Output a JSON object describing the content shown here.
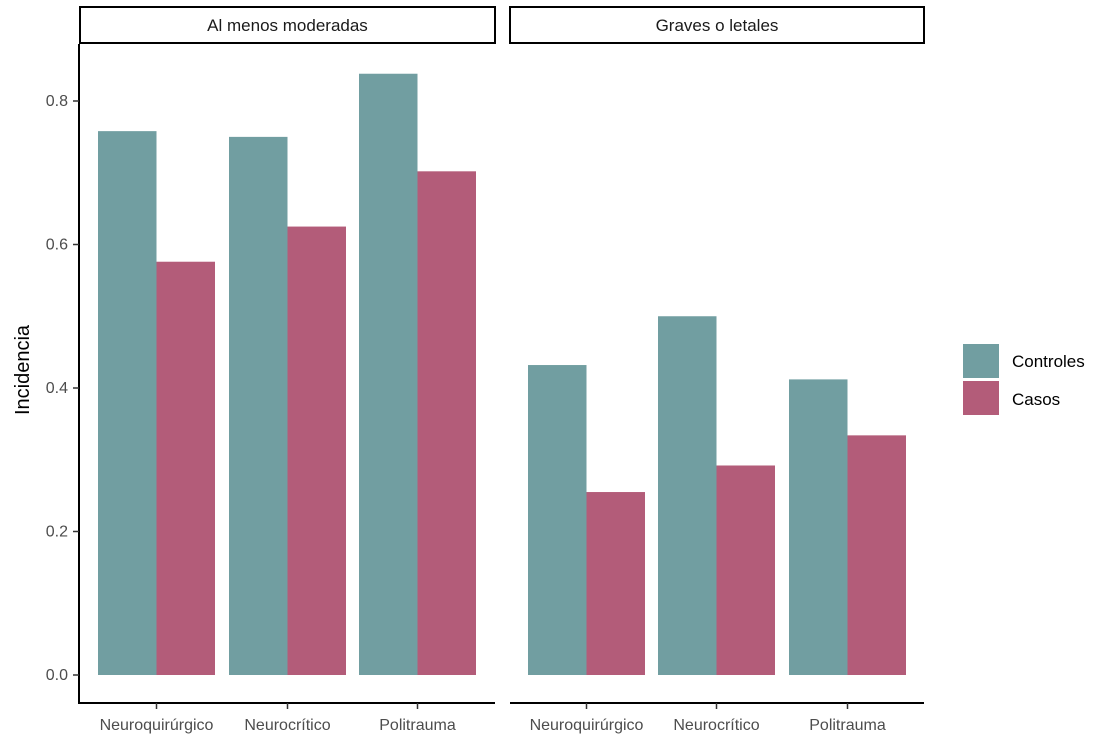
{
  "chart_data": {
    "type": "bar",
    "ylabel": "Incidencia",
    "xlabel": "",
    "ylim": [
      0,
      0.88
    ],
    "y_ticks": [
      "0.0",
      "0.2",
      "0.4",
      "0.6",
      "0.8"
    ],
    "categories": [
      "Neuroquirúrgico",
      "Neurocrítico",
      "Politrauma"
    ],
    "legend": {
      "placement": "right",
      "items": [
        {
          "name": "Controles",
          "color": "#719ea1"
        },
        {
          "name": "Casos",
          "color": "#b35c79"
        }
      ]
    },
    "panels": [
      {
        "title": "Al menos moderadas",
        "series": [
          {
            "name": "Controles",
            "values": [
              0.758,
              0.75,
              0.838
            ]
          },
          {
            "name": "Casos",
            "values": [
              0.576,
              0.625,
              0.702
            ]
          }
        ]
      },
      {
        "title": "Graves o letales",
        "series": [
          {
            "name": "Controles",
            "values": [
              0.432,
              0.5,
              0.412
            ]
          },
          {
            "name": "Casos",
            "values": [
              0.255,
              0.292,
              0.334
            ]
          }
        ]
      }
    ]
  }
}
